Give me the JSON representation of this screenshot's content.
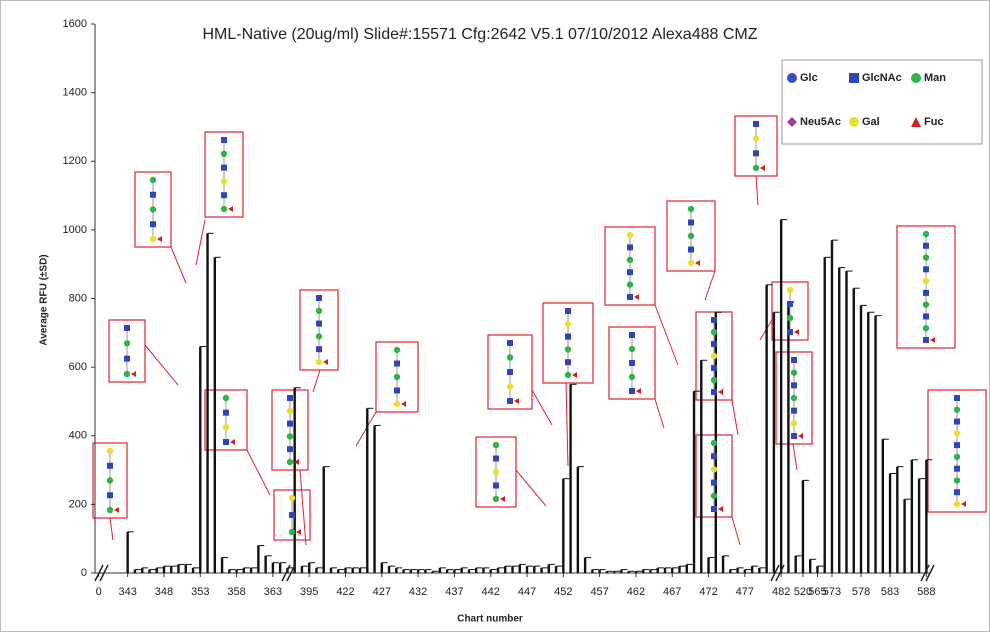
{
  "chart_data": {
    "type": "bar",
    "title": "HML-Native (20ug/ml) Slide#:15571 Cfg:2642 V5.1 07/10/2012 Alexa488 CMZ",
    "y_label": "Average RFU (±SD)",
    "x_label": "Chart number",
    "categories": [
      "0",
      null,
      null,
      null,
      "343",
      null,
      null,
      null,
      null,
      "348",
      null,
      null,
      null,
      null,
      "353",
      null,
      null,
      null,
      null,
      "358",
      null,
      null,
      null,
      null,
      "363",
      null,
      null,
      null,
      null,
      "395",
      null,
      null,
      null,
      null,
      "422",
      null,
      null,
      null,
      null,
      "427",
      null,
      null,
      null,
      null,
      "432",
      null,
      null,
      null,
      null,
      "437",
      null,
      null,
      null,
      null,
      "442",
      null,
      null,
      null,
      null,
      "447",
      null,
      null,
      null,
      null,
      "452",
      null,
      null,
      null,
      null,
      "457",
      null,
      null,
      null,
      null,
      "462",
      null,
      null,
      null,
      null,
      "467",
      null,
      null,
      null,
      null,
      "472",
      null,
      null,
      null,
      null,
      "477",
      null,
      null,
      null,
      null,
      "482",
      null,
      null,
      "520",
      null,
      "565",
      null,
      "573",
      null,
      null,
      null,
      "578",
      null,
      null,
      null,
      "583",
      null,
      null,
      null,
      null,
      "588"
    ],
    "values": [
      null,
      null,
      null,
      null,
      120,
      10,
      15,
      10,
      15,
      20,
      20,
      25,
      25,
      15,
      660,
      990,
      920,
      45,
      10,
      10,
      15,
      15,
      80,
      50,
      30,
      30,
      15,
      540,
      20,
      30,
      15,
      310,
      15,
      10,
      15,
      15,
      15,
      480,
      430,
      30,
      20,
      15,
      10,
      10,
      10,
      10,
      5,
      15,
      10,
      10,
      15,
      10,
      15,
      15,
      10,
      15,
      20,
      20,
      25,
      20,
      20,
      15,
      25,
      20,
      275,
      550,
      310,
      45,
      10,
      10,
      5,
      5,
      10,
      5,
      5,
      10,
      10,
      15,
      15,
      15,
      20,
      25,
      530,
      620,
      45,
      760,
      50,
      10,
      15,
      10,
      20,
      15,
      840,
      760,
      1030,
      790,
      50,
      270,
      40,
      20,
      920,
      970,
      890,
      880,
      830,
      780,
      760,
      750,
      390,
      290,
      310,
      215,
      330,
      275,
      330
    ],
    "color": "#111111",
    "ylim": [
      0,
      1600
    ],
    "yticks": [
      0,
      200,
      400,
      600,
      800,
      1000,
      1200,
      1400,
      1600
    ],
    "legend": [
      {
        "name": "Glc",
        "color": "#3b4cc0"
      },
      {
        "name": "GlcNAc",
        "color": "#2f45b8"
      },
      {
        "name": "Man",
        "color": "#2fb34a"
      },
      {
        "name": "Neu5Ac",
        "color": "#a33aa6"
      },
      {
        "name": "Gal",
        "color": "#e8e030"
      },
      {
        "name": "Fuc",
        "color": "#d42020"
      }
    ]
  }
}
